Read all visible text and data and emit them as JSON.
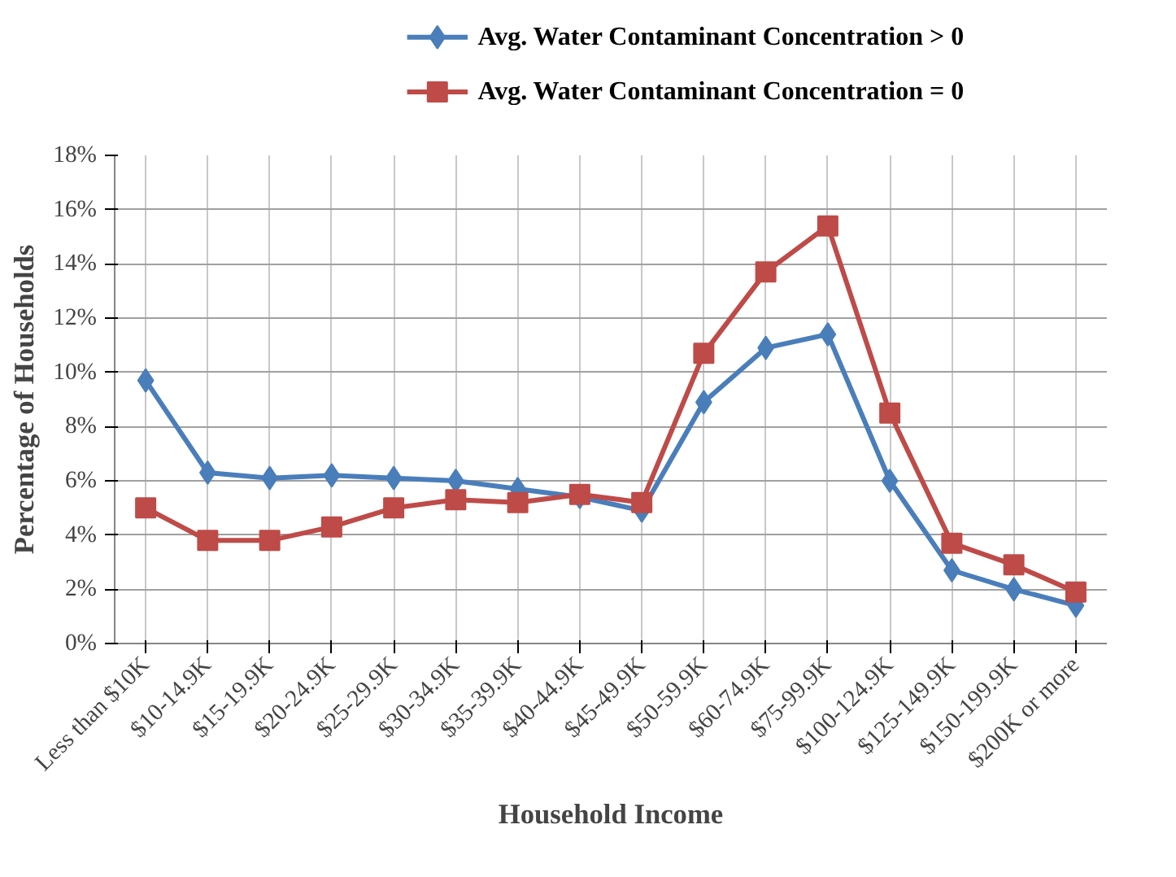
{
  "chart_data": {
    "type": "line",
    "xlabel": "Household Income",
    "ylabel": "Percentage of Households",
    "categories": [
      "Less than $10K",
      "$10-14.9K",
      "$15-19.9K",
      "$20-24.9K",
      "$25-29.9K",
      "$30-34.9K",
      "$35-39.9K",
      "$40-44.9K",
      "$45-49.9K",
      "$50-59.9K",
      "$60-74.9K",
      "$75-99.9K",
      "$100-124.9K",
      "$125-149.9K",
      "$150-199.9K",
      "$200K or more"
    ],
    "series": [
      {
        "name": "Avg. Water Contaminant Concentration > 0",
        "color": "#4a7ebb",
        "marker": "diamond",
        "values": [
          9.7,
          6.3,
          6.1,
          6.2,
          6.1,
          6.0,
          5.7,
          5.4,
          4.9,
          8.9,
          10.9,
          11.4,
          6.0,
          2.7,
          2.0,
          1.4
        ]
      },
      {
        "name": "Avg. Water Contaminant Concentration = 0",
        "color": "#be4b48",
        "marker": "square",
        "values": [
          5.0,
          3.8,
          3.8,
          4.3,
          5.0,
          5.3,
          5.2,
          5.5,
          5.2,
          10.7,
          13.7,
          15.4,
          8.5,
          3.7,
          2.9,
          1.9
        ]
      }
    ],
    "ylim": [
      0,
      18
    ],
    "yticks": [
      {
        "value": 0,
        "label": "0%"
      },
      {
        "value": 2,
        "label": "2%"
      },
      {
        "value": 4,
        "label": "4%"
      },
      {
        "value": 6,
        "label": "6%"
      },
      {
        "value": 8,
        "label": "8%"
      },
      {
        "value": 10,
        "label": "10%"
      },
      {
        "value": 12,
        "label": "12%"
      },
      {
        "value": 14,
        "label": "14%"
      },
      {
        "value": 16,
        "label": "16%"
      },
      {
        "value": 18,
        "label": "18%"
      }
    ],
    "grid": true,
    "legend": "top",
    "line_style": "solid"
  }
}
